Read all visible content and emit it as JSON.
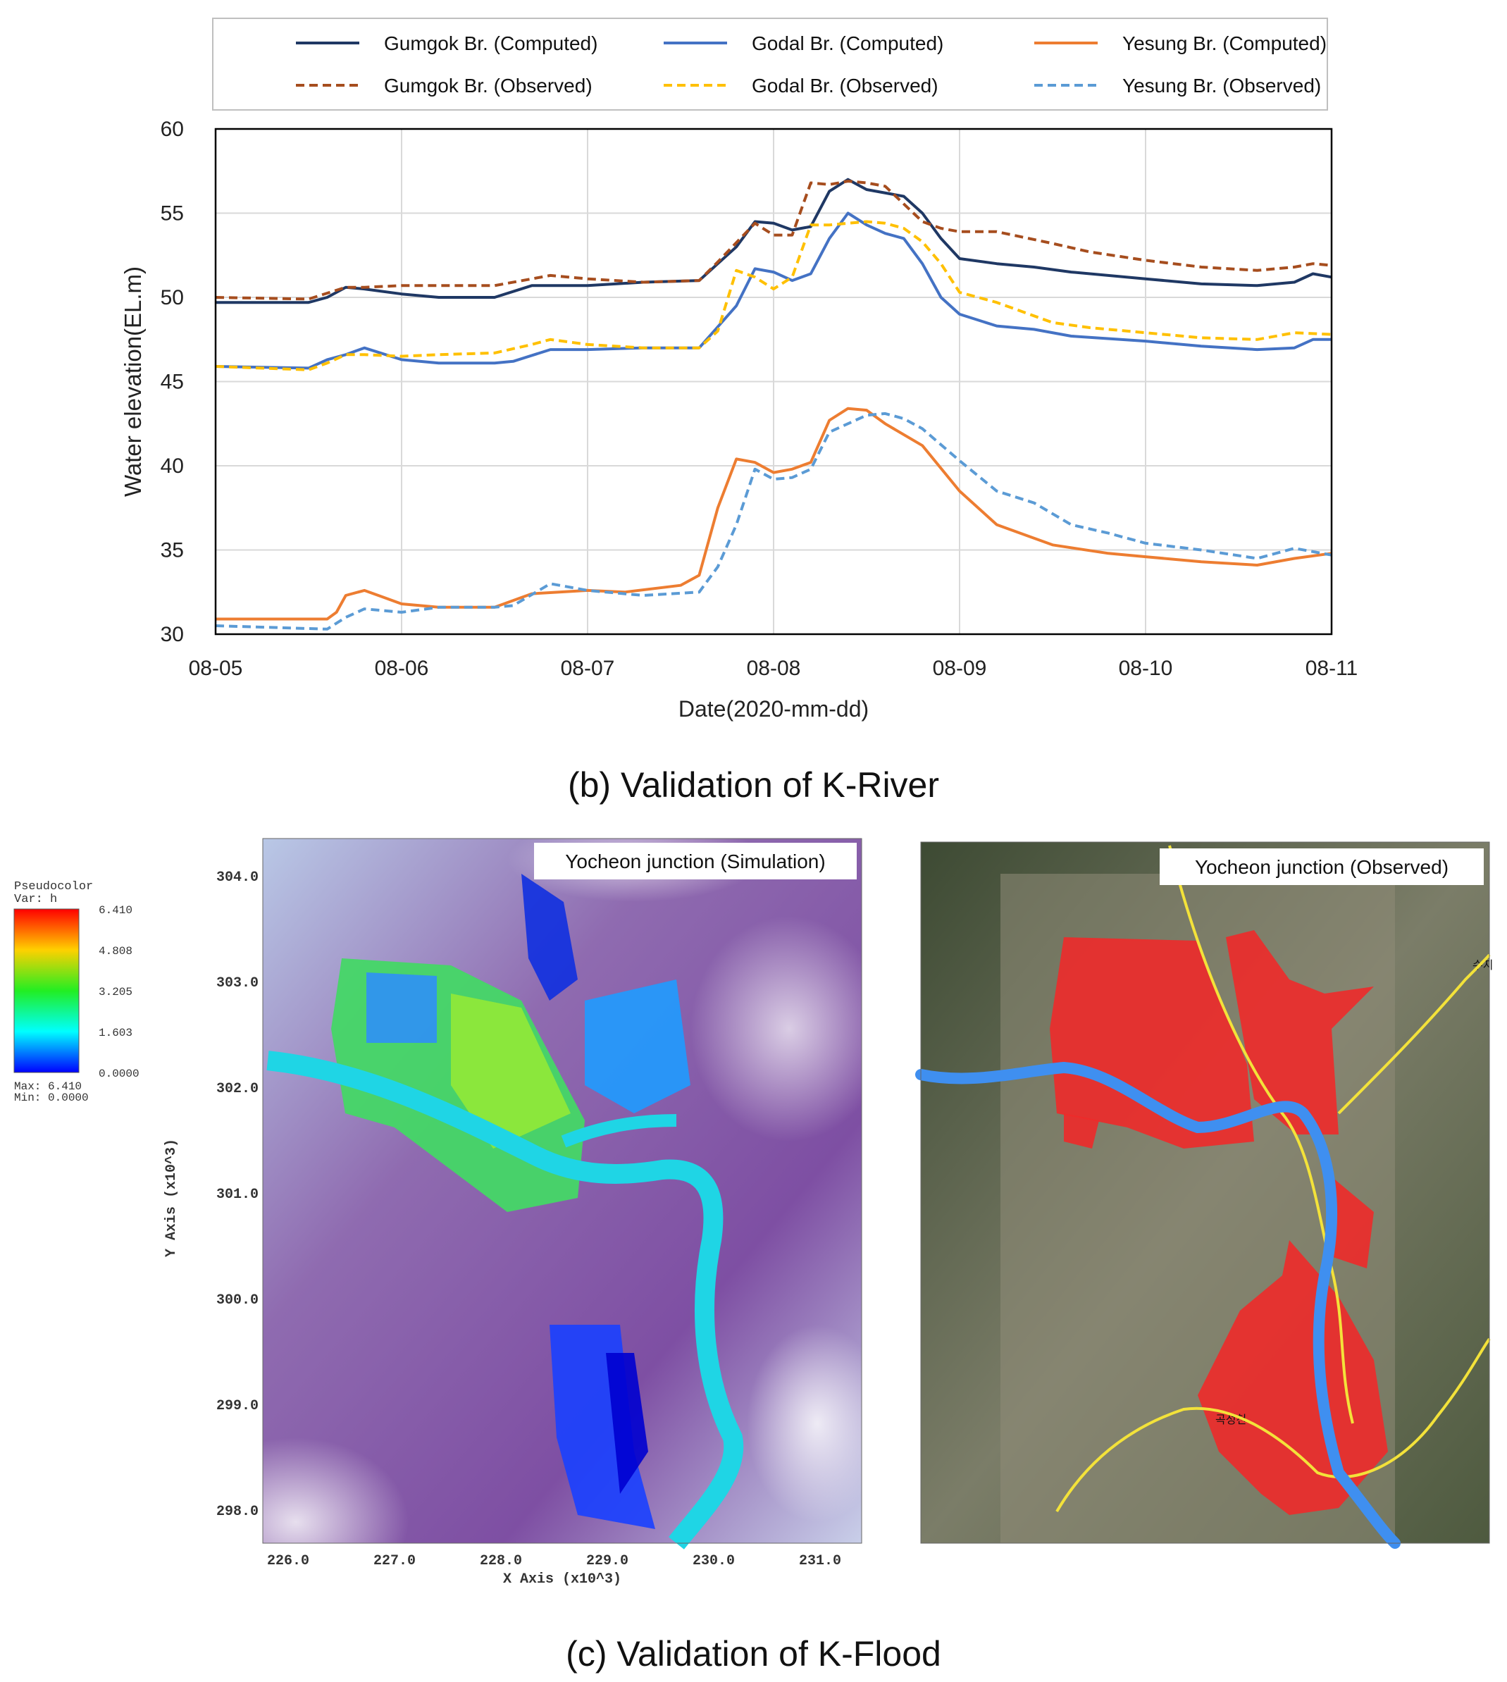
{
  "chart_data": {
    "type": "line",
    "xlabel": "Date(2020-mm-dd)",
    "ylabel": "Water elevation(EL.m)",
    "ylim": [
      30,
      60
    ],
    "yticks": [
      30,
      35,
      40,
      45,
      50,
      55,
      60
    ],
    "xlim": [
      0,
      6
    ],
    "xticks": [
      {
        "x": 0,
        "label": "08-05"
      },
      {
        "x": 1,
        "label": "08-06"
      },
      {
        "x": 2,
        "label": "08-07"
      },
      {
        "x": 3,
        "label": "08-08"
      },
      {
        "x": 4,
        "label": "08-09"
      },
      {
        "x": 5,
        "label": "08-10"
      },
      {
        "x": 6,
        "label": "08-11"
      }
    ],
    "grid": true,
    "legend_position": "top",
    "series": [
      {
        "name": "Gumgok Br. (Computed)",
        "color": "#1f3864",
        "dash": "solid",
        "x": [
          0,
          0.5,
          0.6,
          0.7,
          0.8,
          1.0,
          1.2,
          1.5,
          1.7,
          2.0,
          2.3,
          2.6,
          2.8,
          2.9,
          3.0,
          3.1,
          3.2,
          3.3,
          3.4,
          3.5,
          3.7,
          3.8,
          3.9,
          4.0,
          4.2,
          4.4,
          4.6,
          5.0,
          5.3,
          5.6,
          5.8,
          5.9,
          6.0
        ],
        "y": [
          49.7,
          49.7,
          50.0,
          50.6,
          50.5,
          50.2,
          50.0,
          50.0,
          50.7,
          50.7,
          50.9,
          51.0,
          53.0,
          54.5,
          54.4,
          54.0,
          54.2,
          56.3,
          57.0,
          56.4,
          56.0,
          55.0,
          53.5,
          52.3,
          52.0,
          51.8,
          51.5,
          51.1,
          50.8,
          50.7,
          50.9,
          51.4,
          51.2
        ]
      },
      {
        "name": "Godal Br. (Computed)",
        "color": "#4472c4",
        "dash": "solid",
        "x": [
          0,
          0.5,
          0.6,
          0.7,
          0.8,
          1.0,
          1.2,
          1.5,
          1.6,
          1.8,
          2.0,
          2.3,
          2.6,
          2.8,
          2.9,
          3.0,
          3.1,
          3.2,
          3.3,
          3.4,
          3.5,
          3.6,
          3.7,
          3.8,
          3.9,
          4.0,
          4.2,
          4.4,
          4.6,
          5.0,
          5.3,
          5.6,
          5.8,
          5.9,
          6.0
        ],
        "y": [
          45.9,
          45.8,
          46.3,
          46.6,
          47.0,
          46.3,
          46.1,
          46.1,
          46.2,
          46.9,
          46.9,
          47.0,
          47.0,
          49.5,
          51.7,
          51.5,
          51.0,
          51.4,
          53.5,
          55.0,
          54.3,
          53.8,
          53.5,
          52.0,
          50.0,
          49.0,
          48.3,
          48.1,
          47.7,
          47.4,
          47.1,
          46.9,
          47.0,
          47.5,
          47.5
        ]
      },
      {
        "name": "Yesung Br. (Computed)",
        "color": "#ed7d31",
        "dash": "solid",
        "x": [
          0,
          0.6,
          0.65,
          0.7,
          0.8,
          0.9,
          1.0,
          1.2,
          1.5,
          1.7,
          2.0,
          2.2,
          2.5,
          2.6,
          2.7,
          2.8,
          2.9,
          3.0,
          3.1,
          3.2,
          3.3,
          3.4,
          3.5,
          3.6,
          3.8,
          4.0,
          4.2,
          4.5,
          4.8,
          5.0,
          5.3,
          5.6,
          5.8,
          6.0
        ],
        "y": [
          30.9,
          30.9,
          31.3,
          32.3,
          32.6,
          32.2,
          31.8,
          31.6,
          31.6,
          32.4,
          32.6,
          32.5,
          32.9,
          33.5,
          37.5,
          40.4,
          40.2,
          39.6,
          39.8,
          40.2,
          42.7,
          43.4,
          43.3,
          42.5,
          41.2,
          38.5,
          36.5,
          35.3,
          34.8,
          34.6,
          34.3,
          34.1,
          34.5,
          34.8
        ]
      },
      {
        "name": "Gumgok Br. (Observed)",
        "color": "#a64d1e",
        "dash": "dashed",
        "x": [
          0,
          0.5,
          0.7,
          0.8,
          1.0,
          1.2,
          1.5,
          1.8,
          2.0,
          2.3,
          2.6,
          2.7,
          2.9,
          3.0,
          3.1,
          3.2,
          3.3,
          3.4,
          3.5,
          3.6,
          3.8,
          3.9,
          4.0,
          4.2,
          4.5,
          4.7,
          5.0,
          5.3,
          5.6,
          5.8,
          5.9,
          6.0
        ],
        "y": [
          50.0,
          49.9,
          50.6,
          50.6,
          50.7,
          50.7,
          50.7,
          51.3,
          51.1,
          50.9,
          51.0,
          52.1,
          54.4,
          53.7,
          53.7,
          56.8,
          56.7,
          56.9,
          56.8,
          56.6,
          54.5,
          54.1,
          53.9,
          53.9,
          53.2,
          52.7,
          52.2,
          51.8,
          51.6,
          51.8,
          52.0,
          51.9
        ]
      },
      {
        "name": "Godal Br. (Observed)",
        "color": "#ffc000",
        "dash": "dashed",
        "x": [
          0,
          0.5,
          0.6,
          0.7,
          0.8,
          1.0,
          1.2,
          1.5,
          1.7,
          1.8,
          2.0,
          2.3,
          2.6,
          2.7,
          2.8,
          2.9,
          3.0,
          3.1,
          3.2,
          3.3,
          3.5,
          3.6,
          3.7,
          3.8,
          3.9,
          4.0,
          4.2,
          4.5,
          4.7,
          5.0,
          5.3,
          5.6,
          5.8,
          6.0
        ],
        "y": [
          45.9,
          45.7,
          46.1,
          46.6,
          46.6,
          46.5,
          46.6,
          46.7,
          47.2,
          47.5,
          47.2,
          47.0,
          47.0,
          48.0,
          51.6,
          51.2,
          50.5,
          51.2,
          54.3,
          54.3,
          54.5,
          54.4,
          54.1,
          53.3,
          52.0,
          50.3,
          49.7,
          48.5,
          48.2,
          47.9,
          47.6,
          47.5,
          47.9,
          47.8
        ]
      },
      {
        "name": "Yesung Br. (Observed)",
        "color": "#5b9bd5",
        "dash": "dashed",
        "x": [
          0,
          0.3,
          0.6,
          0.7,
          0.8,
          1.0,
          1.2,
          1.5,
          1.6,
          1.8,
          2.0,
          2.3,
          2.6,
          2.7,
          2.8,
          2.9,
          3.0,
          3.1,
          3.2,
          3.3,
          3.5,
          3.6,
          3.7,
          3.8,
          4.0,
          4.2,
          4.4,
          4.6,
          4.8,
          5.0,
          5.3,
          5.6,
          5.8,
          6.0
        ],
        "y": [
          30.5,
          30.4,
          30.3,
          31.0,
          31.5,
          31.3,
          31.6,
          31.6,
          31.7,
          33.0,
          32.6,
          32.3,
          32.5,
          34.0,
          36.5,
          39.8,
          39.2,
          39.3,
          39.8,
          42.0,
          43.0,
          43.1,
          42.8,
          42.2,
          40.3,
          38.5,
          37.8,
          36.5,
          36.0,
          35.4,
          35.0,
          34.5,
          35.1,
          34.7
        ]
      }
    ]
  },
  "captions": {
    "b": "(b) Validation of K-River",
    "c": "(c) Validation of K-Flood"
  },
  "colorbar": {
    "title": "Pseudocolor",
    "var": "Var: h",
    "ticks": [
      "6.410",
      "4.808",
      "3.205",
      "1.603",
      "0.0000"
    ],
    "max_label": "Max: 6.410",
    "min_label": "Min: 0.0000"
  },
  "sim_map": {
    "label": "Yocheon junction (Simulation)",
    "xlabel": "X Axis (x10^3)",
    "ylabel": "Y Axis (x10^3)",
    "xticks": [
      "226.0",
      "227.0",
      "228.0",
      "229.0",
      "230.0",
      "231.0"
    ],
    "yticks": [
      "304.0",
      "303.0",
      "302.0",
      "301.0",
      "300.0",
      "299.0",
      "298.0"
    ]
  },
  "obs_map": {
    "label": "Yocheon junction (Observed)",
    "place1": "곡성천",
    "place2": "수지"
  }
}
